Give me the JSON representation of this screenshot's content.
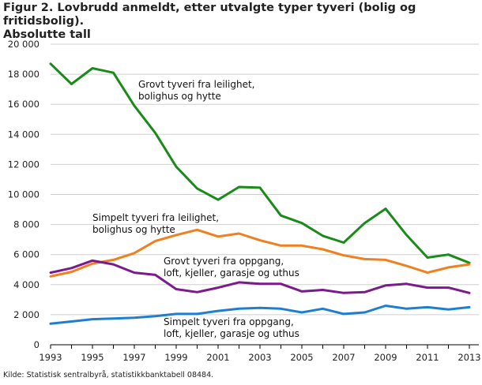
{
  "page": {
    "title_line1": "Figur 2. Lovbrudd anmeldt, etter utvalgte typer tyveri (bolig og fritidsbolig).",
    "title_line2": "Absolutte tall",
    "source": "Kilde: Statistisk sentralbyrå, statistikkbanktabell 08484."
  },
  "chart_data": {
    "type": "line",
    "title": "Figur 2. Lovbrudd anmeldt, etter utvalgte typer tyveri (bolig og fritidsbolig). Absolutte tall",
    "xlabel": "",
    "ylabel": "",
    "x": [
      1993,
      1994,
      1995,
      1996,
      1997,
      1998,
      1999,
      2000,
      2001,
      2002,
      2003,
      2004,
      2005,
      2006,
      2007,
      2008,
      2009,
      2010,
      2011,
      2012,
      2013
    ],
    "x_tick_labels": [
      "1993",
      "1995",
      "1997",
      "1999",
      "2001",
      "2003",
      "2005",
      "2007",
      "2009",
      "2011",
      "2013"
    ],
    "y_ticks": [
      0,
      2000,
      4000,
      6000,
      8000,
      10000,
      12000,
      14000,
      16000,
      18000,
      20000
    ],
    "y_tick_labels": [
      "0",
      "2 000",
      "4 000",
      "6 000",
      "8 000",
      "10 000",
      "12 000",
      "14 000",
      "16 000",
      "18 000",
      "20 000"
    ],
    "ylim": [
      0,
      20000
    ],
    "xlim": [
      1993,
      2013
    ],
    "grid": true,
    "series": [
      {
        "name": "Grovt tyveri fra leilighet, bolighus og hytte",
        "label_lines": [
          "Grovt tyveri fra leilighet,",
          "bolighus og hytte"
        ],
        "color": "#1a8a1a",
        "values": [
          18700,
          17350,
          18400,
          18100,
          15900,
          14100,
          11850,
          10400,
          9650,
          10500,
          10450,
          8600,
          8100,
          7250,
          6800,
          8100,
          9050,
          7300,
          5800,
          6000,
          5450
        ]
      },
      {
        "name": "Simpelt tyveri fra leilighet, bolighus og hytte",
        "label_lines": [
          "Simpelt tyveri fra leilighet,",
          "bolighus og hytte"
        ],
        "color": "#f07f1e",
        "values": [
          4550,
          4850,
          5400,
          5650,
          6100,
          6900,
          7300,
          7650,
          7200,
          7400,
          6950,
          6600,
          6600,
          6350,
          5950,
          5700,
          5650,
          5250,
          4800,
          5150,
          5350
        ]
      },
      {
        "name": "Grovt tyveri fra oppgang, loft, kjeller, garasje og uthus",
        "label_lines": [
          "Grovt tyveri fra oppgang,",
          "loft, kjeller, garasje og uthus"
        ],
        "color": "#7b1a8c",
        "values": [
          4800,
          5100,
          5600,
          5350,
          4800,
          4650,
          3700,
          3500,
          3800,
          4150,
          4050,
          4050,
          3550,
          3650,
          3450,
          3500,
          3950,
          4050,
          3800,
          3800,
          3450
        ]
      },
      {
        "name": "Simpelt tyveri fra oppgang, loft, kjeller, garasje og uthus",
        "label_lines": [
          "Simpelt tyveri fra oppgang,",
          "loft, kjeller, garasje og uthus"
        ],
        "color": "#1e7fd0",
        "values": [
          1400,
          1550,
          1700,
          1750,
          1800,
          1900,
          2050,
          2050,
          2250,
          2400,
          2450,
          2400,
          2150,
          2400,
          2050,
          2150,
          2600,
          2400,
          2500,
          2350,
          2500
        ]
      }
    ]
  }
}
